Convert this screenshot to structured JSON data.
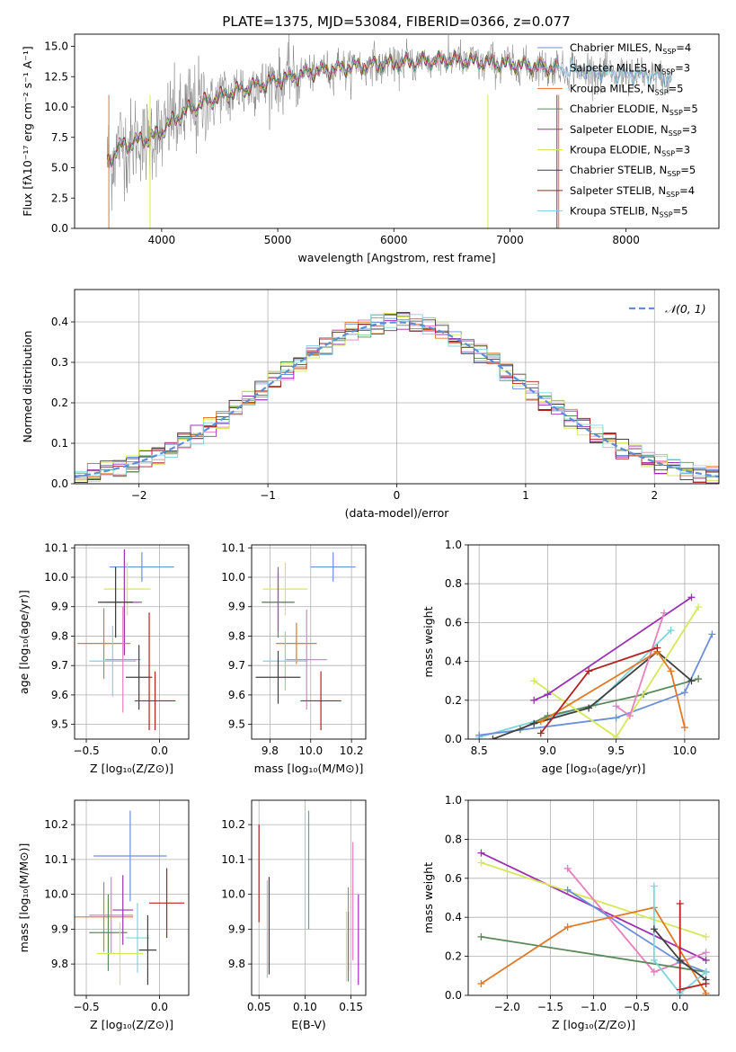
{
  "figure_title": "PLATE=1375, MJD=53084, FIBERID=0366, z=0.077",
  "colors": {
    "Chabrier MILES": "#6d8fd8",
    "Salpeter MILES": "#e87fbf",
    "Kroupa MILES": "#e07a28",
    "Chabrier ELODIE": "#5a8a5a",
    "Salpeter ELODIE": "#9b30b0",
    "Kroupa ELODIE": "#d6e85a",
    "Chabrier STELIB": "#404040",
    "Salpeter STELIB": "#b22222",
    "Kroupa STELIB": "#7fd4dc",
    "data": "#808080",
    "normal": "#5b8fd8"
  },
  "chart_data": [
    {
      "id": "spectrum",
      "type": "line",
      "title": "PLATE=1375, MJD=53084, FIBERID=0366, z=0.077",
      "xlabel": "wavelength [Angstrom, rest frame]",
      "ylabel": "Flux [fλ10⁻¹⁷ erg cm⁻² s⁻¹ A⁻¹]",
      "xlim": [
        3250,
        8800
      ],
      "ylim": [
        0,
        16
      ],
      "xticks": [
        4000,
        5000,
        6000,
        7000,
        8000
      ],
      "yticks": [
        0.0,
        2.5,
        5.0,
        7.5,
        10.0,
        12.5,
        15.0
      ],
      "legend_position": "right",
      "legend": [
        {
          "name": "Chabrier MILES",
          "nssp": "4"
        },
        {
          "name": "Salpeter MILES",
          "nssp": "3"
        },
        {
          "name": "Kroupa MILES",
          "nssp": "5"
        },
        {
          "name": "Chabrier ELODIE",
          "nssp": "5"
        },
        {
          "name": "Salpeter ELODIE",
          "nssp": "3"
        },
        {
          "name": "Kroupa ELODIE",
          "nssp": "3"
        },
        {
          "name": "Chabrier STELIB",
          "nssp": "5"
        },
        {
          "name": "Salpeter STELIB",
          "nssp": "4"
        },
        {
          "name": "Kroupa STELIB",
          "nssp": "5"
        }
      ],
      "continuum": [
        [
          3530,
          5.5
        ],
        [
          3650,
          6.8
        ],
        [
          3800,
          7.2
        ],
        [
          3950,
          7.6
        ],
        [
          4050,
          8.5
        ],
        [
          4200,
          9.6
        ],
        [
          4400,
          10.5
        ],
        [
          4700,
          11.5
        ],
        [
          5000,
          12.2
        ],
        [
          5300,
          12.9
        ],
        [
          5600,
          13.3
        ],
        [
          6000,
          13.6
        ],
        [
          6500,
          13.9
        ],
        [
          7000,
          13.5
        ],
        [
          7400,
          13.2
        ],
        [
          7800,
          12.8
        ],
        [
          8400,
          12.4
        ]
      ],
      "grid": false
    },
    {
      "id": "residuals",
      "type": "histogram",
      "xlabel": "(data-model)/error",
      "ylabel": "Normed distribution",
      "xlim": [
        -2.5,
        2.5
      ],
      "ylim": [
        0,
        0.48
      ],
      "xticks": [
        -2,
        -1,
        0,
        1,
        2
      ],
      "yticks": [
        0.0,
        0.1,
        0.2,
        0.3,
        0.4
      ],
      "legend_position": "top-right",
      "normal_label": "𝒩(0, 1)",
      "grid": true
    },
    {
      "id": "age-vs-Z",
      "type": "errorbar",
      "xlabel": "Z [log₁₀(Z/Z⊙)]",
      "ylabel": "age  [log₁₀(age/yr)]",
      "xlim": [
        -0.58,
        0.2
      ],
      "ylim": [
        9.45,
        10.11
      ],
      "xticks": [
        -0.5,
        0.0
      ],
      "xtick_labels": [
        "−0.5",
        "0.0"
      ],
      "yticks": [
        9.5,
        9.6,
        9.7,
        9.8,
        9.9,
        10.0,
        10.1
      ],
      "grid": true,
      "points": [
        {
          "model": "Chabrier MILES",
          "x": -0.12,
          "xerr": 0.22,
          "y": 10.035,
          "yerr": 0.05
        },
        {
          "model": "Kroupa ELODIE",
          "x": -0.22,
          "xerr": 0.16,
          "y": 9.96,
          "yerr": 0.09
        },
        {
          "model": "Salpeter ELODIE",
          "x": -0.24,
          "xerr": 0.12,
          "y": 9.915,
          "yerr": 0.18
        },
        {
          "model": "Chabrier ELODIE",
          "x": -0.3,
          "xerr": 0.12,
          "y": 9.915,
          "yerr": 0.12
        },
        {
          "model": "Chabrier STELIB",
          "x": -0.3,
          "xerr": 0.12,
          "y": 9.915,
          "yerr": 0.12
        },
        {
          "model": "Kroupa MILES",
          "x": -0.38,
          "xerr": 0.18,
          "y": 9.775,
          "yerr": 0.12
        },
        {
          "model": "Kroupa STELIB",
          "x": -0.32,
          "xerr": 0.16,
          "y": 9.715,
          "yerr": 0.12
        },
        {
          "model": "Salpeter MILES",
          "x": -0.25,
          "xerr": 0.12,
          "y": 9.72,
          "yerr": 0.18
        },
        {
          "model": "Chabrier STELIB",
          "x": -0.14,
          "xerr": 0.09,
          "y": 9.66,
          "yerr": 0.11
        },
        {
          "model": "Salpeter STELIB",
          "x": -0.03,
          "xerr": 0.14,
          "y": 9.58,
          "yerr": 0.1
        },
        {
          "model": "Salpeter STELIB",
          "x": -0.07,
          "xerr": 0.0,
          "y": 9.68,
          "yerr": 0.2
        }
      ]
    },
    {
      "id": "age-vs-mass",
      "type": "errorbar",
      "xlabel": "mass [log₁₀(M/M⊙)]",
      "ylabel": "",
      "xlim": [
        9.71,
        10.27
      ],
      "ylim": [
        9.45,
        10.11
      ],
      "xticks": [
        9.8,
        10.0,
        10.2
      ],
      "yticks": [
        9.5,
        9.6,
        9.7,
        9.8,
        9.9,
        10.0,
        10.1
      ],
      "grid": true,
      "points": [
        {
          "model": "Chabrier MILES",
          "x": 10.11,
          "xerr": 0.11,
          "y": 10.035,
          "yerr": 0.05
        },
        {
          "model": "Kroupa ELODIE",
          "x": 9.875,
          "xerr": 0.11,
          "y": 9.96,
          "yerr": 0.09
        },
        {
          "model": "Salpeter ELODIE",
          "x": 9.84,
          "xerr": 0.08,
          "y": 9.915,
          "yerr": 0.1
        },
        {
          "model": "Chabrier ELODIE",
          "x": 9.84,
          "xerr": 0.08,
          "y": 9.915,
          "yerr": 0.12
        },
        {
          "model": "Kroupa MILES",
          "x": 9.93,
          "xerr": 0.1,
          "y": 9.775,
          "yerr": 0.07
        },
        {
          "model": "Kroupa STELIB",
          "x": 9.875,
          "xerr": 0.11,
          "y": 9.715,
          "yerr": 0.1
        },
        {
          "model": "Salpeter MILES",
          "x": 9.98,
          "xerr": 0.1,
          "y": 9.72,
          "yerr": 0.17
        },
        {
          "model": "Chabrier STELIB",
          "x": 9.84,
          "xerr": 0.11,
          "y": 9.66,
          "yerr": 0.09
        },
        {
          "model": "Salpeter STELIB",
          "x": 10.05,
          "xerr": 0.1,
          "y": 9.58,
          "yerr": 0.1
        }
      ]
    },
    {
      "id": "massweight-vs-age",
      "type": "line",
      "xlabel": "age  [log₁₀(age/yr)]",
      "ylabel": "mass weight",
      "xlim": [
        8.42,
        10.25
      ],
      "ylim": [
        0.0,
        1.0
      ],
      "xticks": [
        8.5,
        9.0,
        9.5,
        10.0
      ],
      "yticks": [
        0.0,
        0.2,
        0.4,
        0.6,
        0.8,
        1.0
      ],
      "grid": true,
      "series": [
        {
          "model": "Kroupa STELIB",
          "x": [
            8.5,
            9.35,
            9.9
          ],
          "y": [
            0.01,
            0.18,
            0.56
          ]
        },
        {
          "model": "Chabrier MILES",
          "x": [
            8.5,
            9.5,
            10.0,
            10.2
          ],
          "y": [
            0.02,
            0.11,
            0.24,
            0.54
          ]
        },
        {
          "model": "Chabrier ELODIE",
          "x": [
            8.8,
            9.0,
            9.7,
            10.1
          ],
          "y": [
            0.05,
            0.12,
            0.23,
            0.31
          ]
        },
        {
          "model": "Chabrier STELIB",
          "x": [
            8.6,
            8.9,
            9.3,
            9.8,
            10.05
          ],
          "y": [
            0.0,
            0.08,
            0.16,
            0.45,
            0.3
          ]
        },
        {
          "model": "Kroupa ELODIE",
          "x": [
            8.9,
            9.5,
            10.1
          ],
          "y": [
            0.3,
            0.01,
            0.68
          ]
        },
        {
          "model": "Salpeter ELODIE",
          "x": [
            8.9,
            9.0,
            10.05
          ],
          "y": [
            0.2,
            0.23,
            0.73
          ]
        },
        {
          "model": "Salpeter MILES",
          "x": [
            9.5,
            9.6,
            9.85
          ],
          "y": [
            0.17,
            0.12,
            0.65
          ]
        },
        {
          "model": "Kroupa MILES",
          "x": [
            8.95,
            9.8,
            9.9,
            10.0
          ],
          "y": [
            0.09,
            0.45,
            0.35,
            0.06
          ]
        },
        {
          "model": "Salpeter STELIB",
          "x": [
            8.95,
            9.3,
            9.8
          ],
          "y": [
            0.03,
            0.35,
            0.47
          ]
        }
      ]
    },
    {
      "id": "mass-vs-Z",
      "type": "errorbar",
      "xlabel": "Z [log₁₀(Z/Z⊙)]",
      "ylabel": "mass [log₁₀(M/M⊙)]",
      "xlim": [
        -0.58,
        0.2
      ],
      "ylim": [
        9.71,
        10.27
      ],
      "xticks": [
        -0.5,
        0.0
      ],
      "xtick_labels": [
        "−0.5",
        "0.0"
      ],
      "yticks": [
        9.8,
        9.9,
        10.0,
        10.1,
        10.2
      ],
      "grid": true,
      "points": [
        {
          "model": "Chabrier MILES",
          "x": -0.2,
          "xerr": 0.25,
          "y": 10.11,
          "yerr": 0.13
        },
        {
          "model": "Salpeter STELIB",
          "x": 0.05,
          "xerr": 0.12,
          "y": 9.975,
          "yerr": 0.1
        },
        {
          "model": "Kroupa MILES",
          "x": -0.38,
          "xerr": 0.2,
          "y": 9.935,
          "yerr": 0.1
        },
        {
          "model": "Salpeter MILES",
          "x": -0.33,
          "xerr": 0.15,
          "y": 9.94,
          "yerr": 0.11
        },
        {
          "model": "Salpeter ELODIE",
          "x": -0.25,
          "xerr": 0.07,
          "y": 9.955,
          "yerr": 0.1
        },
        {
          "model": "Chabrier ELODIE",
          "x": -0.35,
          "xerr": 0.13,
          "y": 9.89,
          "yerr": 0.11
        },
        {
          "model": "Kroupa STELIB",
          "x": -0.15,
          "xerr": 0.08,
          "y": 9.875,
          "yerr": 0.1
        },
        {
          "model": "Chabrier STELIB",
          "x": -0.08,
          "xerr": 0.06,
          "y": 9.84,
          "yerr": 0.1
        },
        {
          "model": "Kroupa ELODIE",
          "x": -0.27,
          "xerr": 0.16,
          "y": 9.83,
          "yerr": 0.09
        }
      ]
    },
    {
      "id": "mass-vs-EBV",
      "type": "errorbar",
      "xlabel": "E(B-V)",
      "ylabel": "",
      "xlim": [
        0.042,
        0.166
      ],
      "ylim": [
        9.71,
        10.27
      ],
      "xticks": [
        0.05,
        0.1,
        0.15
      ],
      "xtick_labels": [
        "0.05",
        "0.10",
        "0.15"
      ],
      "yticks": [
        9.8,
        9.9,
        10.0,
        10.1,
        10.2
      ],
      "grid": true,
      "points": [
        {
          "model": "Salpeter STELIB",
          "x": 0.05,
          "xerr": 0.0,
          "y": 10.06,
          "yerr": 0.14
        },
        {
          "model": "Chabrier STELIB",
          "x": 0.061,
          "xerr": 0.0,
          "y": 9.91,
          "yerr": 0.14
        },
        {
          "model": "Kroupa STELIB",
          "x": 0.059,
          "xerr": 0.0,
          "y": 9.9,
          "yerr": 0.14
        },
        {
          "model": "Chabrier MILES",
          "x": 0.104,
          "xerr": 0.0,
          "y": 10.07,
          "yerr": 0.17
        },
        {
          "model": "Kroupa MILES",
          "x": 0.147,
          "xerr": 0.0,
          "y": 9.9,
          "yerr": 0.12
        },
        {
          "model": "Kroupa ELODIE",
          "x": 0.145,
          "xerr": 0.0,
          "y": 9.85,
          "yerr": 0.1
        },
        {
          "model": "Chabrier ELODIE",
          "x": 0.147,
          "xerr": 0.0,
          "y": 9.85,
          "yerr": 0.1
        },
        {
          "model": "Salpeter MILES",
          "x": 0.152,
          "xerr": 0.0,
          "y": 9.98,
          "yerr": 0.17
        },
        {
          "model": "Salpeter ELODIE",
          "x": 0.158,
          "xerr": 0.0,
          "y": 9.87,
          "yerr": 0.13
        }
      ]
    },
    {
      "id": "massweight-vs-Z",
      "type": "line",
      "xlabel": "Z [log₁₀(Z/Z⊙)]",
      "ylabel": "mass weight",
      "xlim": [
        -2.45,
        0.45
      ],
      "ylim": [
        0.0,
        1.0
      ],
      "xticks": [
        -2.0,
        -1.5,
        -1.0,
        -0.5,
        0.0
      ],
      "xtick_labels": [
        "−2.0",
        "−1.5",
        "−1.0",
        "−0.5",
        "0.0"
      ],
      "yticks": [
        0.0,
        0.2,
        0.4,
        0.6,
        0.8,
        1.0
      ],
      "grid": true,
      "series": [
        {
          "model": "Salpeter ELODIE",
          "x": [
            -2.3,
            0.3
          ],
          "y": [
            0.73,
            0.18
          ]
        },
        {
          "model": "Kroupa ELODIE",
          "x": [
            -2.3,
            0.3
          ],
          "y": [
            0.68,
            0.3
          ]
        },
        {
          "model": "Salpeter MILES",
          "x": [
            -1.3,
            -0.3,
            0.3
          ],
          "y": [
            0.65,
            0.12,
            0.22
          ]
        },
        {
          "model": "Chabrier MILES",
          "x": [
            -1.3,
            0.0,
            0.3
          ],
          "y": [
            0.54,
            0.17,
            0.12
          ]
        },
        {
          "model": "Chabrier ELODIE",
          "x": [
            -2.3,
            0.3
          ],
          "y": [
            0.3,
            0.12
          ]
        },
        {
          "model": "Kroupa MILES",
          "x": [
            -2.3,
            -1.3,
            -0.3,
            0.3
          ],
          "y": [
            0.06,
            0.35,
            0.45,
            0.01
          ]
        },
        {
          "model": "Kroupa STELIB",
          "x": [
            -0.3,
            -0.3,
            0.0,
            0.3
          ],
          "y": [
            0.56,
            0.18,
            0.01,
            0.12
          ]
        },
        {
          "model": "Salpeter STELIB",
          "x": [
            0.0,
            0.0,
            0.3
          ],
          "y": [
            0.47,
            0.03,
            0.06
          ]
        },
        {
          "model": "Chabrier STELIB",
          "x": [
            -0.3,
            0.0,
            0.3
          ],
          "y": [
            0.34,
            0.18,
            0.08
          ]
        }
      ]
    }
  ]
}
